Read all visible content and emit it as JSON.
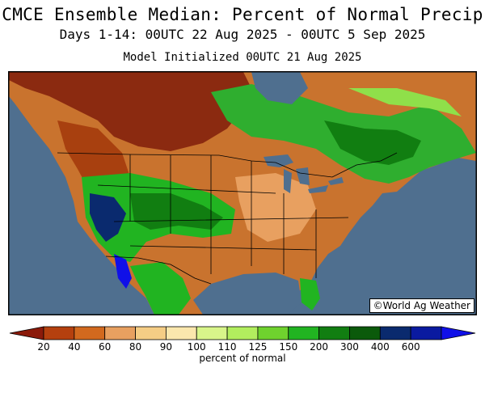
{
  "header": {
    "title": "CMCE Ensemble Median: Percent of Normal Precip",
    "period": "Days 1-14: 00UTC 22 Aug 2025 - 00UTC 5 Sep 2025",
    "init": "Model Initialized 00UTC 21 Aug 2025"
  },
  "map": {
    "credit": "©World Ag Weather",
    "ocean_color": "#4f6f8f",
    "region": "North America"
  },
  "legend": {
    "units": "percent of normal",
    "ticks": [
      "20",
      "40",
      "60",
      "80",
      "90",
      "100",
      "110",
      "125",
      "150",
      "200",
      "300",
      "400",
      "600"
    ],
    "colors": [
      "#8b1a0a",
      "#b5400e",
      "#d2691e",
      "#e8a060",
      "#f5cd85",
      "#fbe7ad",
      "#d8f58a",
      "#b2ee5e",
      "#6fd22e",
      "#21b421",
      "#117e11",
      "#0b5a0b",
      "#0a2a6e",
      "#0a1aa0",
      "#1010e8"
    ]
  }
}
